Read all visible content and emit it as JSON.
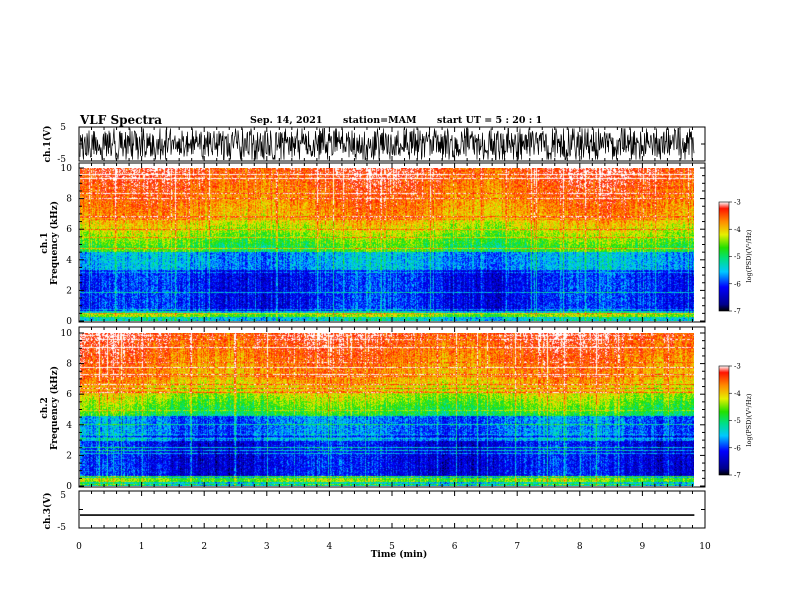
{
  "header": {
    "title": "VLF Spectra",
    "date": "Sep. 14, 2021",
    "station": "station=MAM",
    "start": "start  UT =   5  : 20 : 1"
  },
  "chart_data": [
    {
      "type": "line",
      "name": "ch1-waveform",
      "ylabel": "ch.1(V)",
      "ylim": [
        -5,
        5
      ],
      "yticks": [
        "5",
        "-5"
      ],
      "xlim": [
        0,
        10
      ],
      "description_amplitude_range": [
        -4,
        4
      ]
    },
    {
      "type": "heatmap",
      "name": "ch1-spectrogram",
      "ylabel_line1": "ch.1",
      "ylabel_line2": "Frequency  (kHz)",
      "ylim": [
        0,
        10
      ],
      "yticks": [
        "0",
        "2",
        "4",
        "6",
        "8",
        "10"
      ],
      "xlim": [
        0,
        10
      ],
      "x_end_data": 9.83,
      "colorbar": {
        "label": "log(PSD)(V²/Hz)",
        "range": [
          -7,
          -3
        ],
        "ticks": [
          "-3",
          "-4",
          "-5",
          "-6",
          "-7"
        ]
      }
    },
    {
      "type": "heatmap",
      "name": "ch2-spectrogram",
      "ylabel_line1": "ch.2",
      "ylabel_line2": "Frequency  (kHz)",
      "ylim": [
        0,
        10
      ],
      "yticks": [
        "0",
        "2",
        "4",
        "6",
        "8",
        "10"
      ],
      "xlim": [
        0,
        10
      ],
      "x_end_data": 9.83,
      "colorbar": {
        "label": "log(PSD)(V²/Hz)",
        "range": [
          -7,
          -3
        ],
        "ticks": [
          "-3",
          "-4",
          "-5",
          "-6",
          "-7"
        ]
      }
    },
    {
      "type": "line",
      "name": "ch3-waveform",
      "ylabel": "ch.3(V)",
      "ylim": [
        -5,
        5
      ],
      "yticks": [
        "5",
        "-5"
      ],
      "xlim": [
        0,
        10
      ],
      "x": [
        0,
        9.83
      ],
      "y": [
        -1.5,
        -1.5
      ]
    }
  ],
  "xaxis": {
    "label": "Time  (min)",
    "ticks": [
      "0",
      "1",
      "2",
      "3",
      "4",
      "5",
      "6",
      "7",
      "8",
      "9",
      "10"
    ]
  }
}
